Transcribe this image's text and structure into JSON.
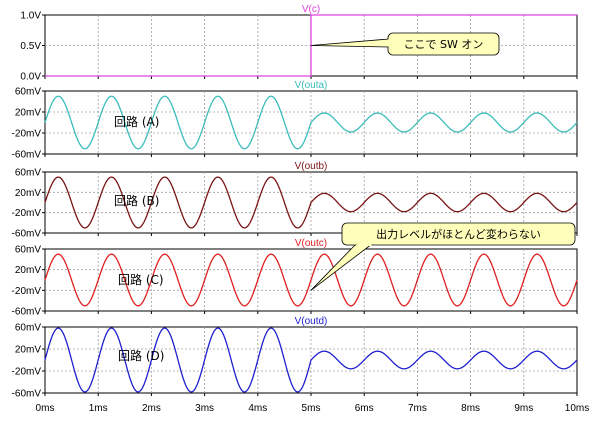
{
  "chart_data": [
    {
      "type": "line",
      "title": "V(c)",
      "title_color": "#e040e0",
      "series": [
        {
          "name": "V(c)",
          "color": "#e040e0",
          "kind": "step",
          "low": 0,
          "high": 1,
          "step_at": 5
        }
      ],
      "ylim": [
        0,
        1
      ],
      "yticks": [
        0,
        0.5,
        1
      ],
      "ytick_labels": [
        "0.0V",
        "0.5V",
        "1.0V"
      ],
      "xlim": [
        0,
        10
      ],
      "grid": true
    },
    {
      "type": "line",
      "title": "V(outa)",
      "title_color": "#3cbcbc",
      "series": [
        {
          "name": "V(outa)",
          "color": "#3cbcbc",
          "kind": "sine",
          "freq_per_ms": 1,
          "amp_before": 50,
          "amp_after": 18,
          "switch_at": 5
        }
      ],
      "label": "回路 (A)",
      "ylim": [
        -60,
        60
      ],
      "yticks": [
        -60,
        -20,
        20,
        60
      ],
      "ytick_labels": [
        "-60mV",
        "-20mV",
        "20mV",
        "60mV"
      ],
      "xlim": [
        0,
        10
      ],
      "grid": true
    },
    {
      "type": "line",
      "title": "V(outb)",
      "title_color": "#7a1414",
      "series": [
        {
          "name": "V(outb)",
          "color": "#7a1414",
          "kind": "sine",
          "freq_per_ms": 1,
          "amp_before": 50,
          "amp_after": 18,
          "switch_at": 5
        }
      ],
      "label": "回路 (B)",
      "ylim": [
        -60,
        60
      ],
      "yticks": [
        -60,
        -20,
        20,
        60
      ],
      "ytick_labels": [
        "-60mV",
        "-20mV",
        "20mV",
        "60mV"
      ],
      "xlim": [
        0,
        10
      ],
      "grid": true
    },
    {
      "type": "line",
      "title": "V(outc)",
      "title_color": "#e02020",
      "series": [
        {
          "name": "V(outc)",
          "color": "#e02020",
          "kind": "sine",
          "freq_per_ms": 1,
          "amp_before": 50,
          "amp_after": 50,
          "switch_at": 5
        }
      ],
      "label": "回路 (C)",
      "ylim": [
        -60,
        60
      ],
      "yticks": [
        -60,
        -20,
        20,
        60
      ],
      "ytick_labels": [
        "-60mV",
        "-20mV",
        "20mV",
        "60mV"
      ],
      "xlim": [
        0,
        10
      ],
      "grid": true
    },
    {
      "type": "line",
      "title": "V(outd)",
      "title_color": "#2020d0",
      "series": [
        {
          "name": "V(outd)",
          "color": "#2020d0",
          "kind": "sine",
          "freq_per_ms": 1,
          "amp_before": 58,
          "amp_after": 16,
          "switch_at": 5
        }
      ],
      "label": "回路 (D)",
      "ylim": [
        -60,
        60
      ],
      "yticks": [
        -60,
        -20,
        20,
        60
      ],
      "ytick_labels": [
        "-60mV",
        "-20mV",
        "20mV",
        "60mV"
      ],
      "xlim": [
        0,
        10
      ],
      "grid": true
    }
  ],
  "x_axis": {
    "ticks": [
      0,
      1,
      2,
      3,
      4,
      5,
      6,
      7,
      8,
      9,
      10
    ],
    "tick_labels": [
      "0ms",
      "1ms",
      "2ms",
      "3ms",
      "4ms",
      "5ms",
      "6ms",
      "7ms",
      "8ms",
      "9ms",
      "10ms"
    ]
  },
  "callouts": [
    {
      "text": "ここで SW オン",
      "panel": 0,
      "target_x": 5,
      "target_y": 0.5
    },
    {
      "text": "出力レベルがほとんど変わらない",
      "panel": 3,
      "target_x": 5,
      "target_y": -20
    }
  ],
  "colors": {
    "grid": "#a0a0a0",
    "callout_fill": "#ffffbb",
    "frame": "#000000"
  }
}
